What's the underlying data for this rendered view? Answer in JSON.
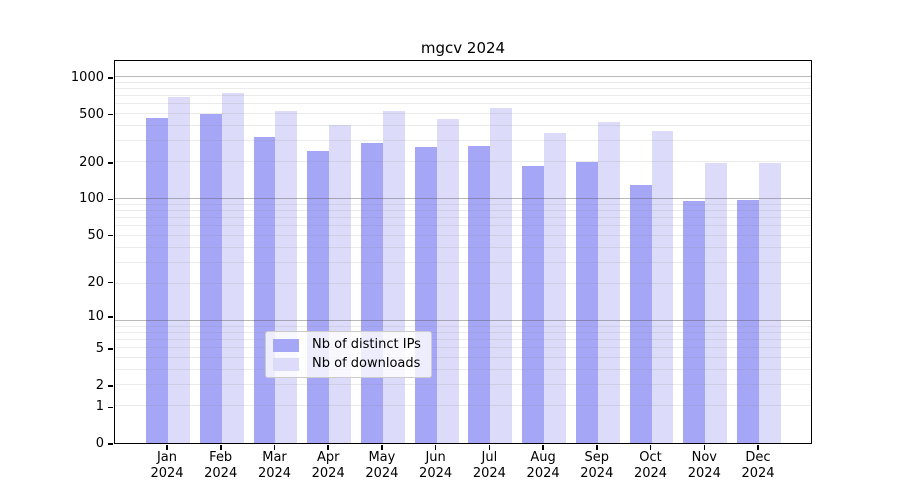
{
  "chart_data": {
    "type": "bar",
    "title": "mgcv 2024",
    "yscale": "log1p",
    "ylim": [
      0,
      1400
    ],
    "grid": "both",
    "legend_position": "lower-center",
    "yticks": [
      1000,
      500,
      200,
      100,
      50,
      20,
      10,
      5,
      2,
      1,
      0
    ],
    "categories": [
      "Jan",
      "Feb",
      "Mar",
      "Apr",
      "May",
      "Jun",
      "Jul",
      "Aug",
      "Sep",
      "Oct",
      "Nov",
      "Dec"
    ],
    "year_label": "2024",
    "series": [
      {
        "name": "Nb of distinct IPs",
        "color": "#a6a6f7",
        "values": [
          460,
          495,
          320,
          245,
          285,
          265,
          270,
          185,
          200,
          128,
          95,
          97
        ]
      },
      {
        "name": "Nb of downloads",
        "color": "#dcdcfa",
        "values": [
          690,
          735,
          525,
          400,
          525,
          450,
          555,
          345,
          425,
          358,
          195,
          197
        ]
      }
    ]
  }
}
